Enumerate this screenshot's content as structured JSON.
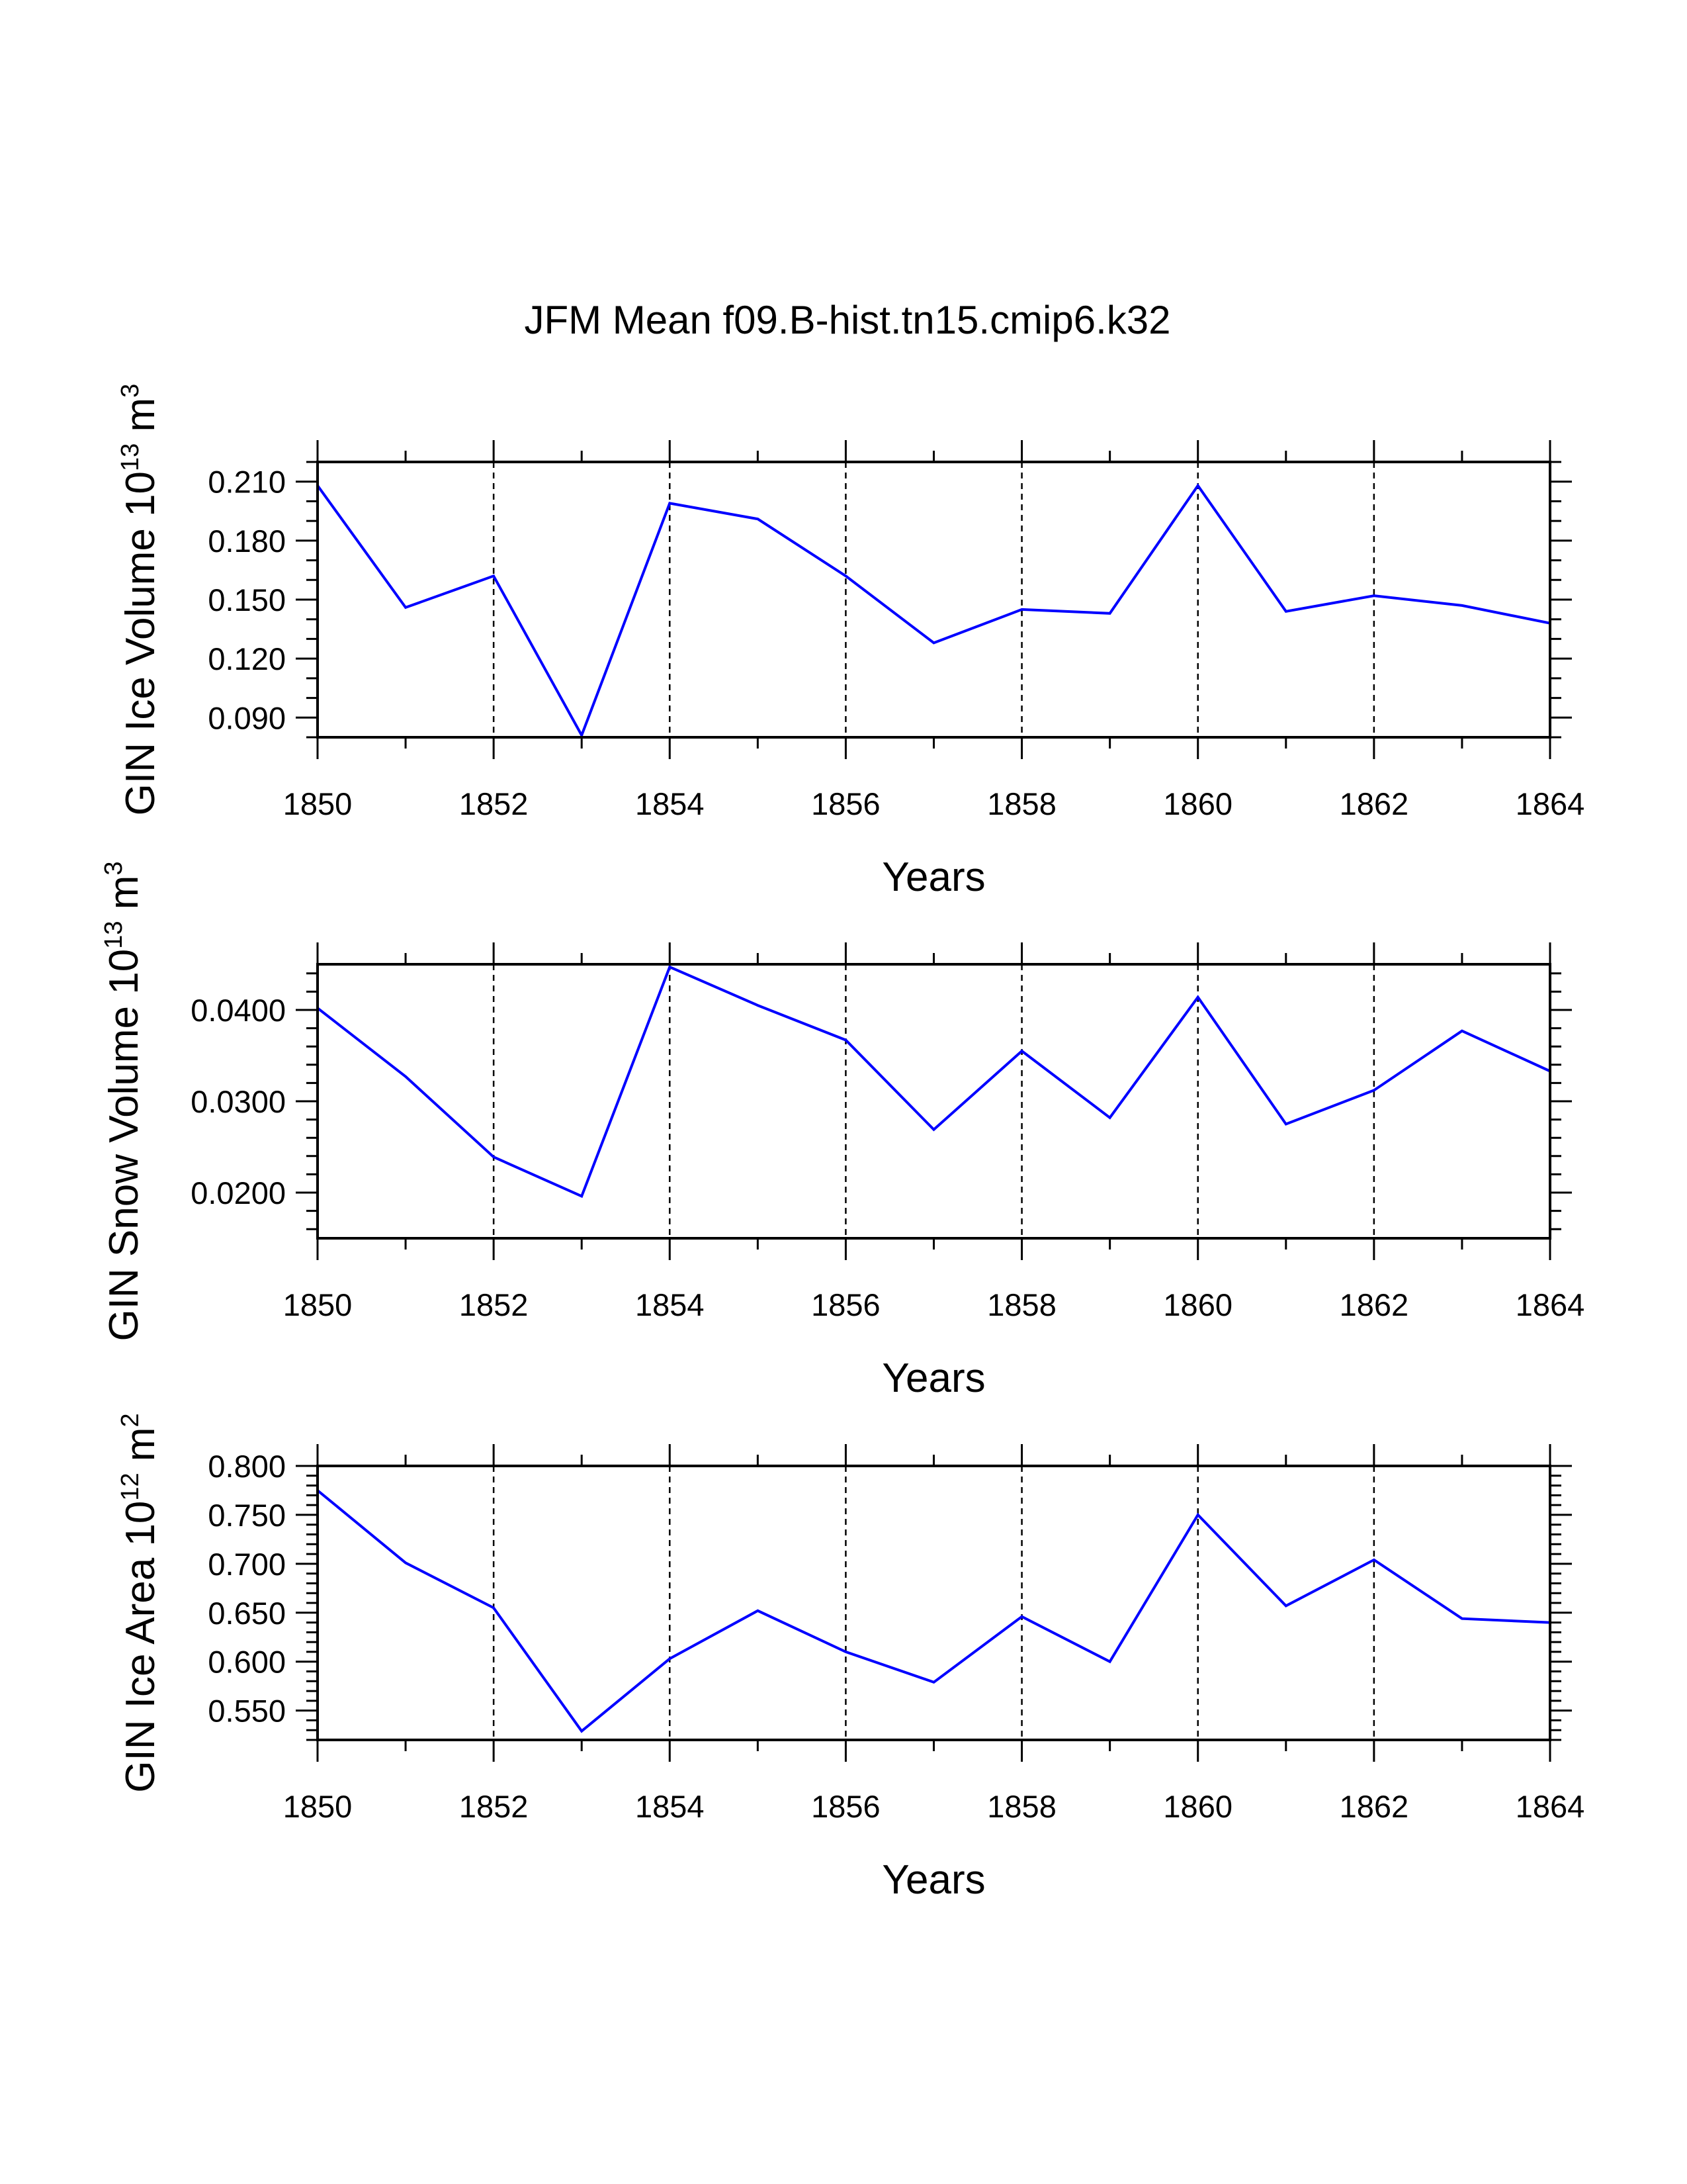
{
  "title": "JFM Mean f09.B-hist.tn15.cmip6.k32",
  "chart_data": [
    {
      "type": "line",
      "title": "JFM Mean f09.B-hist.tn15.cmip6.k32",
      "xlabel": "Years",
      "ylabel_text": "GIN Ice Volume 10",
      "ylabel_sup1": "13",
      "ylabel_mid": " m",
      "ylabel_sup2": "3",
      "line_color": "#0000ff",
      "xlim": [
        1850,
        1864
      ],
      "ylim": [
        0.08,
        0.22
      ],
      "x_ticks": [
        1850,
        1852,
        1854,
        1856,
        1858,
        1860,
        1862,
        1864
      ],
      "x_tick_labels": [
        "1850",
        "1852",
        "1854",
        "1856",
        "1858",
        "1860",
        "1862",
        "1864"
      ],
      "y_ticks": [
        0.09,
        0.12,
        0.15,
        0.18,
        0.21
      ],
      "y_tick_labels": [
        "0.090",
        "0.120",
        "0.150",
        "0.180",
        "0.210"
      ],
      "y_minor_step": 0.01,
      "grid": "vertical dashed at major x ticks",
      "x": [
        1850,
        1851,
        1852,
        1853,
        1854,
        1855,
        1856,
        1857,
        1858,
        1859,
        1860,
        1861,
        1862,
        1863,
        1864
      ],
      "values": [
        0.208,
        0.146,
        0.162,
        0.081,
        0.199,
        0.191,
        0.162,
        0.128,
        0.145,
        0.143,
        0.208,
        0.144,
        0.152,
        0.147,
        0.138
      ]
    },
    {
      "type": "line",
      "xlabel": "Years",
      "ylabel_text": "GIN Snow Volume 10",
      "ylabel_sup1": "13",
      "ylabel_mid": " m",
      "ylabel_sup2": "3",
      "line_color": "#0000ff",
      "xlim": [
        1850,
        1864
      ],
      "ylim": [
        0.015,
        0.045
      ],
      "x_ticks": [
        1850,
        1852,
        1854,
        1856,
        1858,
        1860,
        1862,
        1864
      ],
      "x_tick_labels": [
        "1850",
        "1852",
        "1854",
        "1856",
        "1858",
        "1860",
        "1862",
        "1864"
      ],
      "y_ticks": [
        0.02,
        0.03,
        0.04
      ],
      "y_tick_labels": [
        "0.0200",
        "0.0300",
        "0.0400"
      ],
      "y_minor_step": 0.002,
      "grid": "vertical dashed at major x ticks",
      "x": [
        1850,
        1851,
        1852,
        1853,
        1854,
        1855,
        1856,
        1857,
        1858,
        1859,
        1860,
        1861,
        1862,
        1863,
        1864
      ],
      "values": [
        0.0402,
        0.0327,
        0.0239,
        0.0196,
        0.0447,
        0.0405,
        0.0367,
        0.0269,
        0.0355,
        0.0282,
        0.0414,
        0.0275,
        0.0312,
        0.0377,
        0.0333
      ]
    },
    {
      "type": "line",
      "xlabel": "Years",
      "ylabel_text": "GIN Ice Area 10",
      "ylabel_sup1": "12",
      "ylabel_mid": " m",
      "ylabel_sup2": "2",
      "line_color": "#0000ff",
      "xlim": [
        1850,
        1864
      ],
      "ylim": [
        0.52,
        0.8
      ],
      "x_ticks": [
        1850,
        1852,
        1854,
        1856,
        1858,
        1860,
        1862,
        1864
      ],
      "x_tick_labels": [
        "1850",
        "1852",
        "1854",
        "1856",
        "1858",
        "1860",
        "1862",
        "1864"
      ],
      "y_ticks": [
        0.55,
        0.6,
        0.65,
        0.7,
        0.75,
        0.8
      ],
      "y_tick_labels": [
        "0.550",
        "0.600",
        "0.650",
        "0.700",
        "0.750",
        "0.800"
      ],
      "y_minor_step": 0.01,
      "grid": "vertical dashed at major x ticks",
      "x": [
        1850,
        1851,
        1852,
        1853,
        1854,
        1855,
        1856,
        1857,
        1858,
        1859,
        1860,
        1861,
        1862,
        1863,
        1864
      ],
      "values": [
        0.775,
        0.701,
        0.655,
        0.529,
        0.603,
        0.652,
        0.61,
        0.579,
        0.646,
        0.6,
        0.75,
        0.657,
        0.704,
        0.644,
        0.64
      ]
    }
  ]
}
